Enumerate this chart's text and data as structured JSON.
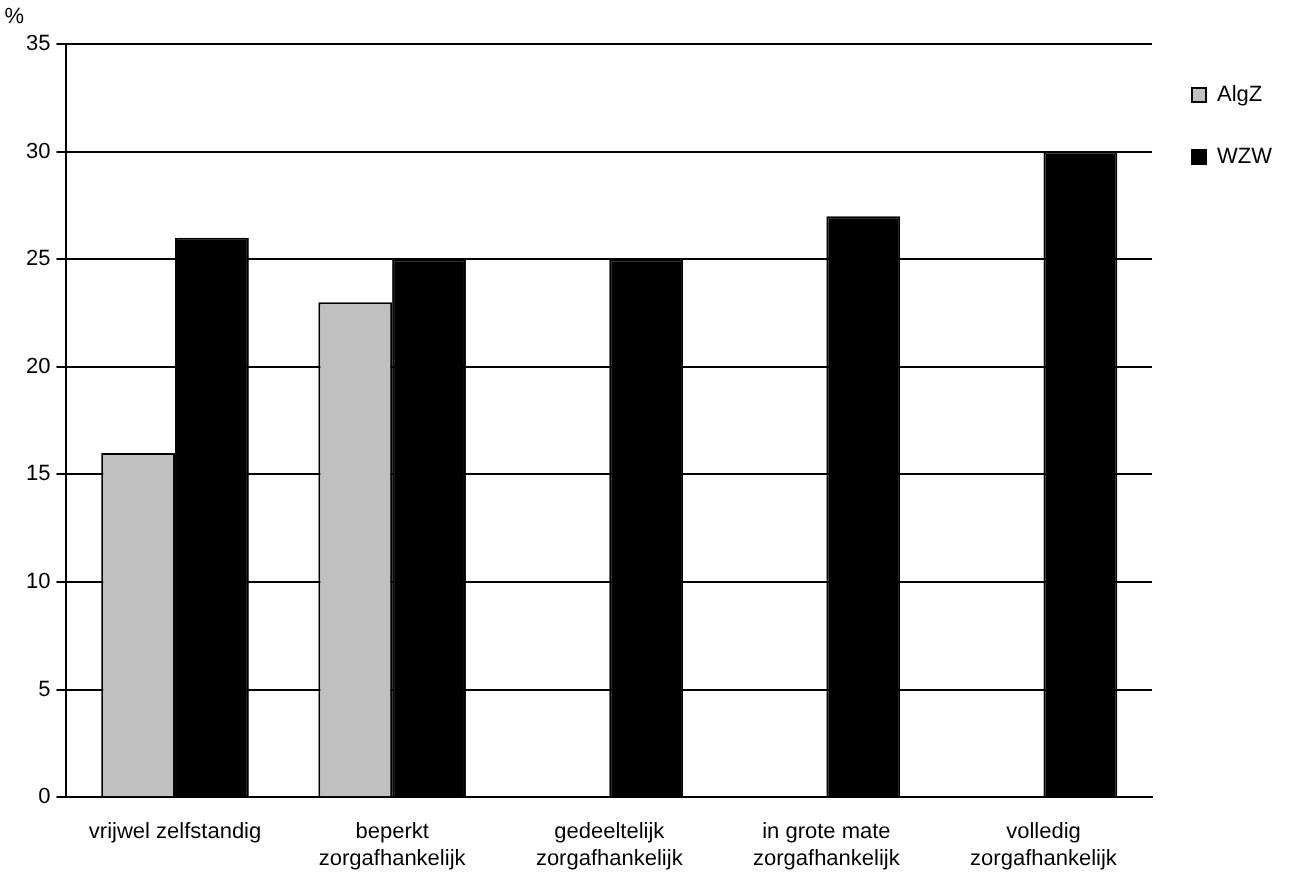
{
  "chart_data": {
    "type": "bar",
    "ylabel": "%",
    "categories": [
      "vrijwel zelfstandig",
      "beperkt zorgafhankelijk",
      "gedeeltelijk zorgafhankelijk",
      "in grote mate zorgafhankelijk",
      "volledig zorgafhankelijk"
    ],
    "series": [
      {
        "name": "AlgZ",
        "color": "#c0c0c0",
        "values": [
          16,
          23,
          null,
          null,
          null
        ]
      },
      {
        "name": "WZW",
        "color": "#000000",
        "values": [
          26,
          25,
          25,
          27,
          30
        ]
      }
    ],
    "ylim": [
      0,
      35
    ],
    "yticks": [
      0,
      5,
      10,
      15,
      20,
      25,
      30,
      35
    ],
    "grid": "y",
    "legend": "right"
  }
}
